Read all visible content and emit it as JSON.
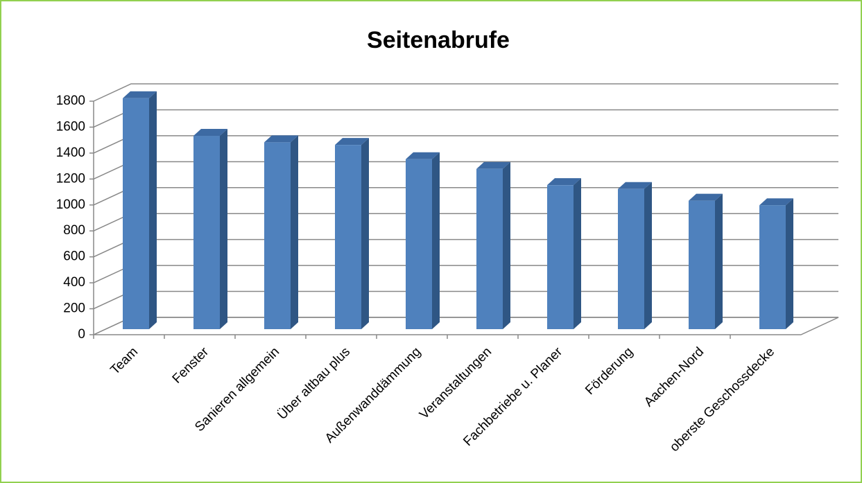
{
  "chart_data": {
    "type": "bar",
    "title": "Seitenabrufe",
    "categories": [
      "Team",
      "Fenster",
      "Sanieren allgemein",
      "Über altbau plus",
      "Außenwanddämmung",
      "Veranstaltungen",
      "Fachbetriebe u. Planer",
      "Förderung",
      "Aachen-Nord",
      "oberste Geschossdecke"
    ],
    "values": [
      1780,
      1490,
      1440,
      1420,
      1310,
      1235,
      1110,
      1080,
      990,
      955
    ],
    "color": "#4f81bd",
    "ylim": [
      0,
      1800
    ],
    "yticks": [
      0,
      200,
      400,
      600,
      800,
      1000,
      1200,
      1400,
      1600,
      1800
    ],
    "grid": true
  }
}
